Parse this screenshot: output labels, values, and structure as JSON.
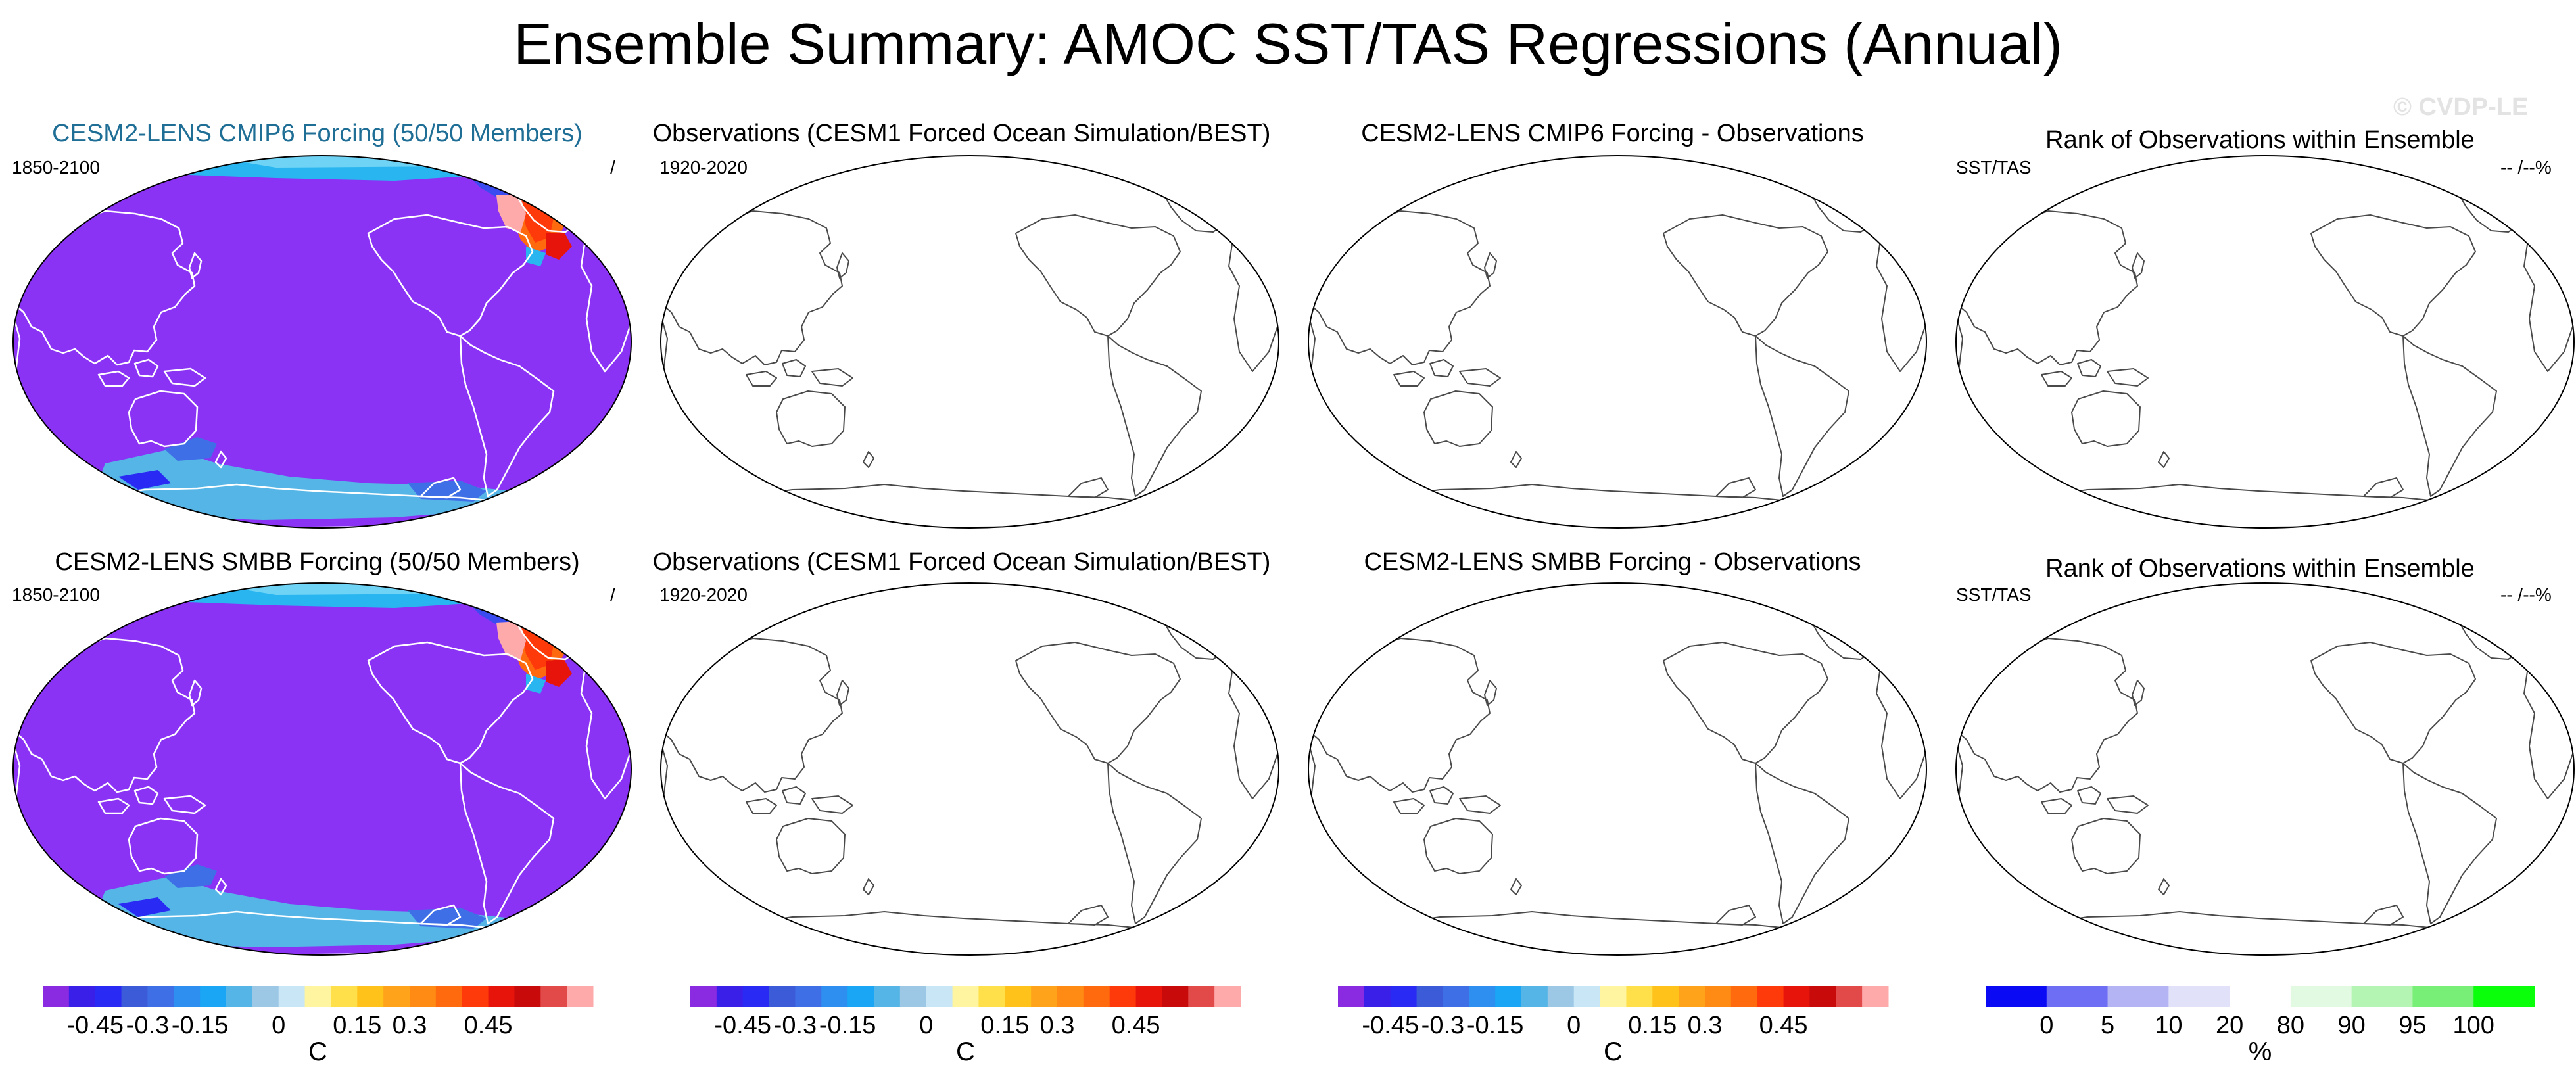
{
  "figure_title": "Ensemble Summary: AMOC SST/TAS Regressions (Annual)",
  "watermark": "© CVDP-LE",
  "colors": {
    "ensemble_title_cmip6": "#1f6e96",
    "ensemble_title_smbb": "#5e8a5e",
    "map_fill": "#8a33f5"
  },
  "panels": [
    {
      "id": "r1c1",
      "title": "CESM2-LENS CMIP6 Forcing (50/50 Members)",
      "title_color": "#1f6e96",
      "left_label": "1850-2100",
      "right_label": "/",
      "filled": true
    },
    {
      "id": "r1c2",
      "title": "Observations (CESM1 Forced Ocean Simulation/BEST)",
      "title_color": "#000000",
      "left_label": "1920-2020",
      "right_label": "",
      "filled": false
    },
    {
      "id": "r1c3",
      "title": "CESM2-LENS CMIP6 Forcing - Observations",
      "title_color": "#000000",
      "left_label": "",
      "right_label": "",
      "filled": false
    },
    {
      "id": "r1c4",
      "title": "Rank of Observations within Ensemble",
      "title_color": "#000000",
      "left_label": "SST/TAS",
      "right_label": "-- /--%",
      "filled": false
    },
    {
      "id": "r2c1",
      "title": "CESM2-LENS SMBB Forcing (50/50 Members)",
      "title_color": "#5e8a5e",
      "left_label": "1850-2100",
      "right_label": "/",
      "filled": true
    },
    {
      "id": "r2c2",
      "title": "Observations (CESM1 Forced Ocean Simulation/BEST)",
      "title_color": "#000000",
      "left_label": "1920-2020",
      "right_label": "",
      "filled": false
    },
    {
      "id": "r2c3",
      "title": "CESM2-LENS SMBB Forcing - Observations",
      "title_color": "#000000",
      "left_label": "",
      "right_label": "",
      "filled": false
    },
    {
      "id": "r2c4",
      "title": "Rank of Observations within Ensemble",
      "title_color": "#000000",
      "left_label": "SST/TAS",
      "right_label": "-- /--%",
      "filled": false
    }
  ],
  "colorbars": [
    {
      "id": "cb1",
      "unit": "C",
      "colors": [
        "#8a2be2",
        "#3a1fe8",
        "#2a2af5",
        "#3b5bd9",
        "#3f6fe6",
        "#2f8ff0",
        "#1aa5f5",
        "#55b5e6",
        "#9cc8e6",
        "#c8e6f5",
        "#fff5a0",
        "#ffe04a",
        "#ffc21a",
        "#ffa31a",
        "#ff8a14",
        "#ff6a0f",
        "#ff3a0a",
        "#e6140a",
        "#c80a0a",
        "#e24a4a",
        "#ffaaaa"
      ],
      "labels": [
        "-0.45",
        "-0.3",
        "-0.15",
        "0",
        "0.15",
        "0.3",
        "0.45"
      ],
      "label_boxes": [
        2,
        4,
        6,
        9,
        12,
        14,
        17
      ]
    },
    {
      "id": "cb2",
      "unit": "C",
      "colors": [
        "#8a2be2",
        "#3a1fe8",
        "#2a2af5",
        "#3b5bd9",
        "#3f6fe6",
        "#2f8ff0",
        "#1aa5f5",
        "#55b5e6",
        "#9cc8e6",
        "#c8e6f5",
        "#fff5a0",
        "#ffe04a",
        "#ffc21a",
        "#ffa31a",
        "#ff8a14",
        "#ff6a0f",
        "#ff3a0a",
        "#e6140a",
        "#c80a0a",
        "#e24a4a",
        "#ffaaaa"
      ],
      "labels": [
        "-0.45",
        "-0.3",
        "-0.15",
        "0",
        "0.15",
        "0.3",
        "0.45"
      ],
      "label_boxes": [
        2,
        4,
        6,
        9,
        12,
        14,
        17
      ]
    },
    {
      "id": "cb3",
      "unit": "C",
      "colors": [
        "#8a2be2",
        "#3a1fe8",
        "#2a2af5",
        "#3b5bd9",
        "#3f6fe6",
        "#2f8ff0",
        "#1aa5f5",
        "#55b5e6",
        "#9cc8e6",
        "#c8e6f5",
        "#fff5a0",
        "#ffe04a",
        "#ffc21a",
        "#ffa31a",
        "#ff8a14",
        "#ff6a0f",
        "#ff3a0a",
        "#e6140a",
        "#c80a0a",
        "#e24a4a",
        "#ffaaaa"
      ],
      "labels": [
        "-0.45",
        "-0.3",
        "-0.15",
        "0",
        "0.15",
        "0.3",
        "0.45"
      ],
      "label_boxes": [
        2,
        4,
        6,
        9,
        12,
        14,
        17
      ]
    },
    {
      "id": "cb4",
      "unit": "%",
      "colors": [
        "#0a0af5",
        "#6e6ef5",
        "#b4b4f5",
        "#e1e1fa",
        "#ffffff",
        "#e1fae1",
        "#b4f5b4",
        "#78f078",
        "#0aff0a"
      ],
      "labels": [
        "0",
        "5",
        "10",
        "20",
        "80",
        "90",
        "95",
        "100"
      ],
      "label_boxes": [
        1,
        2,
        3,
        4,
        5,
        6,
        7,
        8
      ]
    }
  ]
}
